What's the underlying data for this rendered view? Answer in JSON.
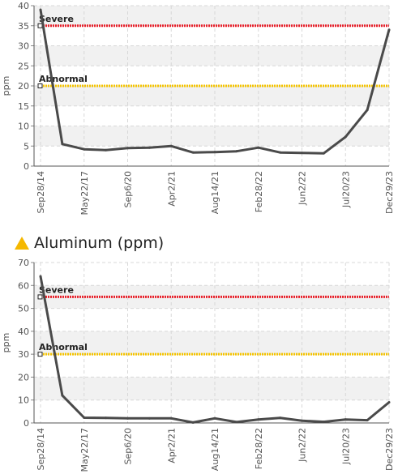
{
  "heading": {
    "title": "Aluminum (ppm)",
    "icon": "warning-triangle-icon",
    "icon_color": "#f5b800"
  },
  "chart_data": [
    {
      "type": "line",
      "ylabel": "ppm",
      "ylim": [
        0,
        40
      ],
      "yticks": [
        0,
        5,
        10,
        15,
        20,
        25,
        30,
        35,
        40
      ],
      "xtick_labels": [
        "Sep28/14",
        "May22/17",
        "Sep6/20",
        "Apr2/21",
        "Aug14/21",
        "Feb28/22",
        "Jun2/22",
        "Jul20/23",
        "Dec29/23"
      ],
      "thresholds": [
        {
          "label": "Severe",
          "value": 35,
          "color": "#e8202a"
        },
        {
          "label": "Abnormal",
          "value": 20,
          "color": "#f5c400"
        }
      ],
      "series": [
        {
          "color": "#4a4a4a",
          "values": [
            39,
            5.5,
            4.2,
            4,
            4.5,
            4.6,
            5,
            3.4,
            3.5,
            3.7,
            4.6,
            3.4,
            3.3,
            3.2,
            7.3,
            14,
            34
          ]
        }
      ],
      "grid": true
    },
    {
      "type": "line",
      "ylabel": "ppm",
      "ylim": [
        0,
        70
      ],
      "yticks": [
        0,
        10,
        20,
        30,
        40,
        50,
        60,
        70
      ],
      "xtick_labels": [
        "Sep28/14",
        "May22/17",
        "Sep6/20",
        "Apr2/21",
        "Aug14/21",
        "Feb28/22",
        "Jun2/22",
        "Jul20/23",
        "Dec29/23"
      ],
      "thresholds": [
        {
          "label": "Severe",
          "value": 55,
          "color": "#e8202a"
        },
        {
          "label": "Abnormal",
          "value": 30,
          "color": "#f5c400"
        }
      ],
      "series": [
        {
          "color": "#4a4a4a",
          "values": [
            64,
            12,
            2.3,
            2.2,
            2,
            2,
            2,
            0.2,
            2,
            0.4,
            1.5,
            2.2,
            1,
            0.5,
            1.5,
            1.2,
            9
          ]
        }
      ],
      "grid": true
    }
  ]
}
